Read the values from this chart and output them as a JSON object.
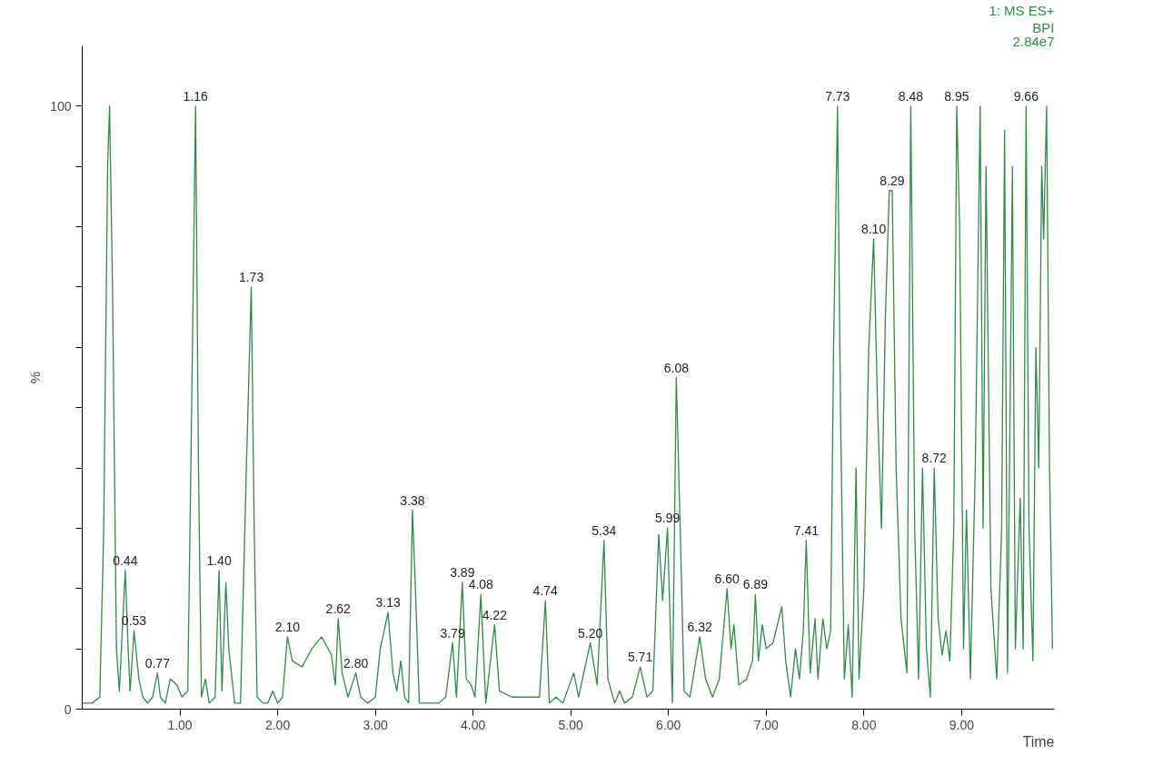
{
  "chart_data": {
    "type": "line",
    "xlabel": "Time",
    "ylabel": "%",
    "x": [
      0.0,
      0.1,
      0.18,
      0.22,
      0.26,
      0.28,
      0.31,
      0.35,
      0.38,
      0.44,
      0.47,
      0.49,
      0.53,
      0.58,
      0.62,
      0.67,
      0.72,
      0.77,
      0.8,
      0.85,
      0.9,
      0.97,
      1.02,
      1.08,
      1.12,
      1.16,
      1.19,
      1.22,
      1.26,
      1.3,
      1.36,
      1.4,
      1.43,
      1.47,
      1.5,
      1.56,
      1.62,
      1.68,
      1.73,
      1.76,
      1.79,
      1.85,
      1.9,
      1.95,
      2.0,
      2.05,
      2.1,
      2.15,
      2.25,
      2.35,
      2.45,
      2.55,
      2.59,
      2.62,
      2.66,
      2.72,
      2.8,
      2.85,
      2.92,
      3.0,
      3.05,
      3.13,
      3.18,
      3.22,
      3.26,
      3.3,
      3.34,
      3.38,
      3.41,
      3.45,
      3.55,
      3.65,
      3.72,
      3.79,
      3.83,
      3.89,
      3.93,
      3.98,
      4.02,
      4.08,
      4.13,
      4.22,
      4.27,
      4.4,
      4.55,
      4.68,
      4.74,
      4.78,
      4.85,
      4.92,
      5.03,
      5.08,
      5.2,
      5.27,
      5.34,
      5.38,
      5.45,
      5.5,
      5.55,
      5.63,
      5.71,
      5.78,
      5.84,
      5.9,
      5.94,
      5.99,
      6.04,
      6.08,
      6.12,
      6.16,
      6.22,
      6.32,
      6.38,
      6.45,
      6.52,
      6.6,
      6.64,
      6.67,
      6.72,
      6.8,
      6.86,
      6.89,
      6.92,
      6.96,
      7.0,
      7.07,
      7.16,
      7.2,
      7.25,
      7.3,
      7.34,
      7.38,
      7.41,
      7.45,
      7.5,
      7.53,
      7.58,
      7.62,
      7.66,
      7.69,
      7.73,
      7.76,
      7.8,
      7.84,
      7.88,
      7.92,
      7.95,
      8.0,
      8.05,
      8.1,
      8.14,
      8.18,
      8.22,
      8.26,
      8.29,
      8.33,
      8.38,
      8.44,
      8.48,
      8.52,
      8.56,
      8.6,
      8.64,
      8.68,
      8.72,
      8.76,
      8.8,
      8.84,
      8.88,
      8.92,
      8.95,
      8.98,
      9.02,
      9.05,
      9.09,
      9.14,
      9.19,
      9.22,
      9.25,
      9.3,
      9.36,
      9.41,
      9.44,
      9.47,
      9.52,
      9.55,
      9.6,
      9.63,
      9.66,
      9.69,
      9.73,
      9.76,
      9.79,
      9.82,
      9.84,
      9.87,
      9.9,
      9.93
    ],
    "series": [
      {
        "color": "#2e8b4a",
        "values": [
          1,
          1,
          2,
          30,
          90,
          100,
          70,
          10,
          3,
          23,
          10,
          3,
          13,
          5,
          2,
          1,
          2,
          6,
          2,
          1,
          5,
          4,
          2,
          3,
          50,
          100,
          40,
          2,
          5,
          1,
          2,
          23,
          3,
          21,
          10,
          1,
          1,
          40,
          70,
          30,
          2,
          1,
          1,
          3,
          1,
          2,
          12,
          8,
          7,
          10,
          12,
          9,
          4,
          15,
          6,
          2,
          6,
          2,
          1,
          2,
          10,
          16,
          6,
          3,
          8,
          2,
          1,
          33,
          20,
          1,
          1,
          1,
          2,
          11,
          2,
          21,
          5,
          4,
          2,
          19,
          1,
          14,
          3,
          2,
          2,
          2,
          18,
          1,
          2,
          1,
          6,
          2,
          11,
          4,
          28,
          5,
          1,
          3,
          1,
          2,
          7,
          2,
          3,
          29,
          18,
          30,
          1,
          55,
          30,
          3,
          2,
          12,
          5,
          2,
          5,
          20,
          10,
          14,
          4,
          5,
          8,
          19,
          8,
          14,
          10,
          11,
          17,
          8,
          2,
          10,
          5,
          13,
          28,
          6,
          15,
          5,
          15,
          10,
          13,
          60,
          100,
          50,
          5,
          14,
          2,
          40,
          5,
          20,
          60,
          78,
          50,
          30,
          65,
          86,
          86,
          40,
          15,
          6,
          100,
          30,
          5,
          40,
          10,
          2,
          40,
          15,
          9,
          13,
          8,
          30,
          100,
          80,
          10,
          33,
          5,
          40,
          100,
          30,
          90,
          20,
          5,
          30,
          96,
          6,
          90,
          10,
          35,
          10,
          100,
          30,
          8,
          60,
          40,
          90,
          78,
          100,
          40,
          10
        ]
      }
    ],
    "xlim": [
      0,
      9.95
    ],
    "ylim": [
      0,
      110
    ],
    "xticks": [
      {
        "value": 1,
        "label": "1.00"
      },
      {
        "value": 2,
        "label": "2.00"
      },
      {
        "value": 3,
        "label": "3.00"
      },
      {
        "value": 4,
        "label": "4.00"
      },
      {
        "value": 5,
        "label": "5.00"
      },
      {
        "value": 6,
        "label": "6.00"
      },
      {
        "value": 7,
        "label": "7.00"
      },
      {
        "value": 8,
        "label": "8.00"
      },
      {
        "value": 9,
        "label": "9.00"
      }
    ],
    "yticks": [
      0,
      {
        "value": 10,
        "label": null
      },
      {
        "value": 20,
        "label": null
      },
      {
        "value": 30,
        "label": null
      },
      {
        "value": 40,
        "label": null
      },
      {
        "value": 50,
        "label": null
      },
      {
        "value": 60,
        "label": null
      },
      {
        "value": 70,
        "label": null
      },
      {
        "value": 80,
        "label": null
      },
      {
        "value": 90,
        "label": null
      },
      100
    ],
    "grid": false,
    "annotations": [
      "1: MS ES+",
      "BPI",
      "2.84e7",
      {
        "text": "0.44",
        "x": 0.44,
        "y": 23
      },
      {
        "text": "0.53",
        "x": 0.53,
        "y": 13
      },
      {
        "text": "0.77",
        "x": 0.77,
        "y": 6
      },
      {
        "text": "1.16",
        "x": 1.16,
        "y": 100
      },
      {
        "text": "1.40",
        "x": 1.4,
        "y": 23
      },
      {
        "text": "1.73",
        "x": 1.73,
        "y": 70
      },
      {
        "text": "2.10",
        "x": 2.1,
        "y": 12
      },
      {
        "text": "2.62",
        "x": 2.62,
        "y": 15
      },
      {
        "text": "2.80",
        "x": 2.8,
        "y": 6
      },
      {
        "text": "3.13",
        "x": 3.13,
        "y": 16
      },
      {
        "text": "3.38",
        "x": 3.38,
        "y": 33
      },
      {
        "text": "3.79",
        "x": 3.79,
        "y": 11
      },
      {
        "text": "3.89",
        "x": 3.89,
        "y": 21
      },
      {
        "text": "4.08",
        "x": 4.08,
        "y": 19
      },
      {
        "text": "4.22",
        "x": 4.22,
        "y": 14
      },
      {
        "text": "4.74",
        "x": 4.74,
        "y": 18
      },
      {
        "text": "5.20",
        "x": 5.2,
        "y": 11
      },
      {
        "text": "5.34",
        "x": 5.34,
        "y": 28
      },
      {
        "text": "5.71",
        "x": 5.71,
        "y": 7
      },
      {
        "text": "5.99",
        "x": 5.99,
        "y": 30
      },
      {
        "text": "6.08",
        "x": 6.08,
        "y": 55
      },
      {
        "text": "6.32",
        "x": 6.32,
        "y": 12
      },
      {
        "text": "6.60",
        "x": 6.6,
        "y": 20
      },
      {
        "text": "6.89",
        "x": 6.89,
        "y": 19
      },
      {
        "text": "7.41",
        "x": 7.41,
        "y": 28
      },
      {
        "text": "7.73",
        "x": 7.73,
        "y": 100
      },
      {
        "text": "8.10",
        "x": 8.1,
        "y": 78
      },
      {
        "text": "8.29",
        "x": 8.29,
        "y": 86
      },
      {
        "text": "8.48",
        "x": 8.48,
        "y": 100
      },
      {
        "text": "8.72",
        "x": 8.72,
        "y": 40
      },
      {
        "text": "8.95",
        "x": 8.95,
        "y": 100
      },
      {
        "text": "9.66",
        "x": 9.66,
        "y": 100
      }
    ]
  }
}
